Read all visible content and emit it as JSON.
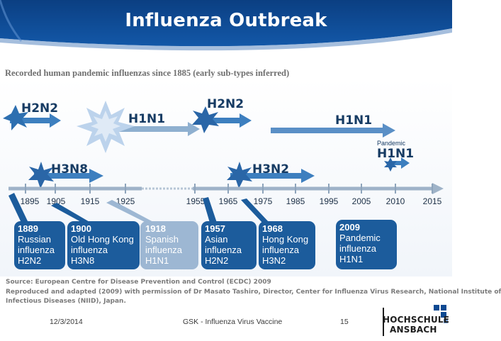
{
  "slide": {
    "title": "Influenza Outbreak",
    "subtitle": "Recorded human pandemic influenzas since 1885 (early sub-types inferred)"
  },
  "colors": {
    "header_blue": "#0d4a92",
    "arrow_blue": "#3d7fbf",
    "dark_navy": "#163b63",
    "box_blue": "#1c5c9c",
    "box_light": "#9db7d3",
    "timeline": "#9fb3c8"
  },
  "timeline": {
    "ticks": [
      "1895",
      "1905",
      "1915",
      "1925",
      "1955",
      "1965",
      "1975",
      "1985",
      "1995",
      "2005",
      "2010",
      "2015"
    ]
  },
  "strains": {
    "h2n2_early": "H2N2",
    "h3n8": "H3N8",
    "h1n1_1918": "H1N1",
    "h2n2_1957": "H2N2",
    "h3n2": "H3N2",
    "h1n1_1977": "H1N1",
    "pandemic_label": "Pandemic",
    "h1n1_pandemic": "H1N1"
  },
  "pandemics": [
    {
      "year": "1889",
      "name1": "Russian",
      "name2": "influenza",
      "strain": "H2N2"
    },
    {
      "year": "1900",
      "name1": "Old Hong Kong",
      "name2": "influenza",
      "strain": "H3N8"
    },
    {
      "year": "1918",
      "name1": "Spanish",
      "name2": "influenza",
      "strain": "H1N1"
    },
    {
      "year": "1957",
      "name1": "Asian",
      "name2": "influenza",
      "strain": "H2N2"
    },
    {
      "year": "1968",
      "name1": "Hong Kong",
      "name2": "influenza",
      "strain": "H3N2"
    },
    {
      "year": "2009",
      "name1": "Pandemic",
      "name2": "influenza",
      "strain": "H1N1"
    }
  ],
  "source": {
    "line1": "Source: European Centre for Disease Prevention and Control (ECDC) 2009",
    "line2": "Reproduced and adapted (2009) with permission of Dr Masato Tashiro, Director, Center for Influenza Virus Research, National Institute of",
    "line3": "Infectious Diseases (NIID), Japan."
  },
  "footer": {
    "date": "12/3/2014",
    "center": "GSK - Influenza Virus Vaccine",
    "page": "15"
  },
  "logo": {
    "line1": "HOCHSCHULE",
    "line2": "ANSBACH"
  }
}
